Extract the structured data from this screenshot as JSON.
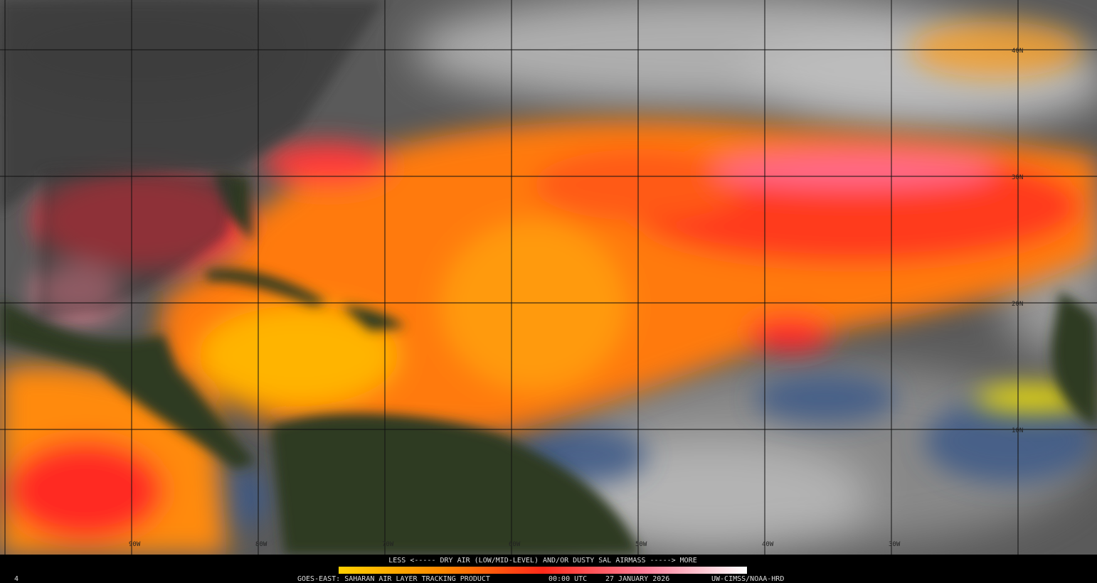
{
  "map": {
    "longitude_labels": [
      "90W",
      "80W",
      "70W",
      "60W",
      "50W",
      "40W",
      "30W"
    ],
    "latitude_labels": [
      "40N",
      "30N",
      "20N",
      "10N"
    ],
    "legend": {
      "caption": "LESS <----- DRY AIR (LOW/MID-LEVEL) AND/OR DUSTY SAL AIRMASS -----> MORE"
    },
    "footer": {
      "frame": "4",
      "product": "GOES-EAST: SAHARAN AIR LAYER TRACKING PRODUCT",
      "time": "00:00 UTC",
      "date": "27 JANUARY 2026",
      "credit": "UW-CIMSS/NOAA-HRD"
    }
  }
}
